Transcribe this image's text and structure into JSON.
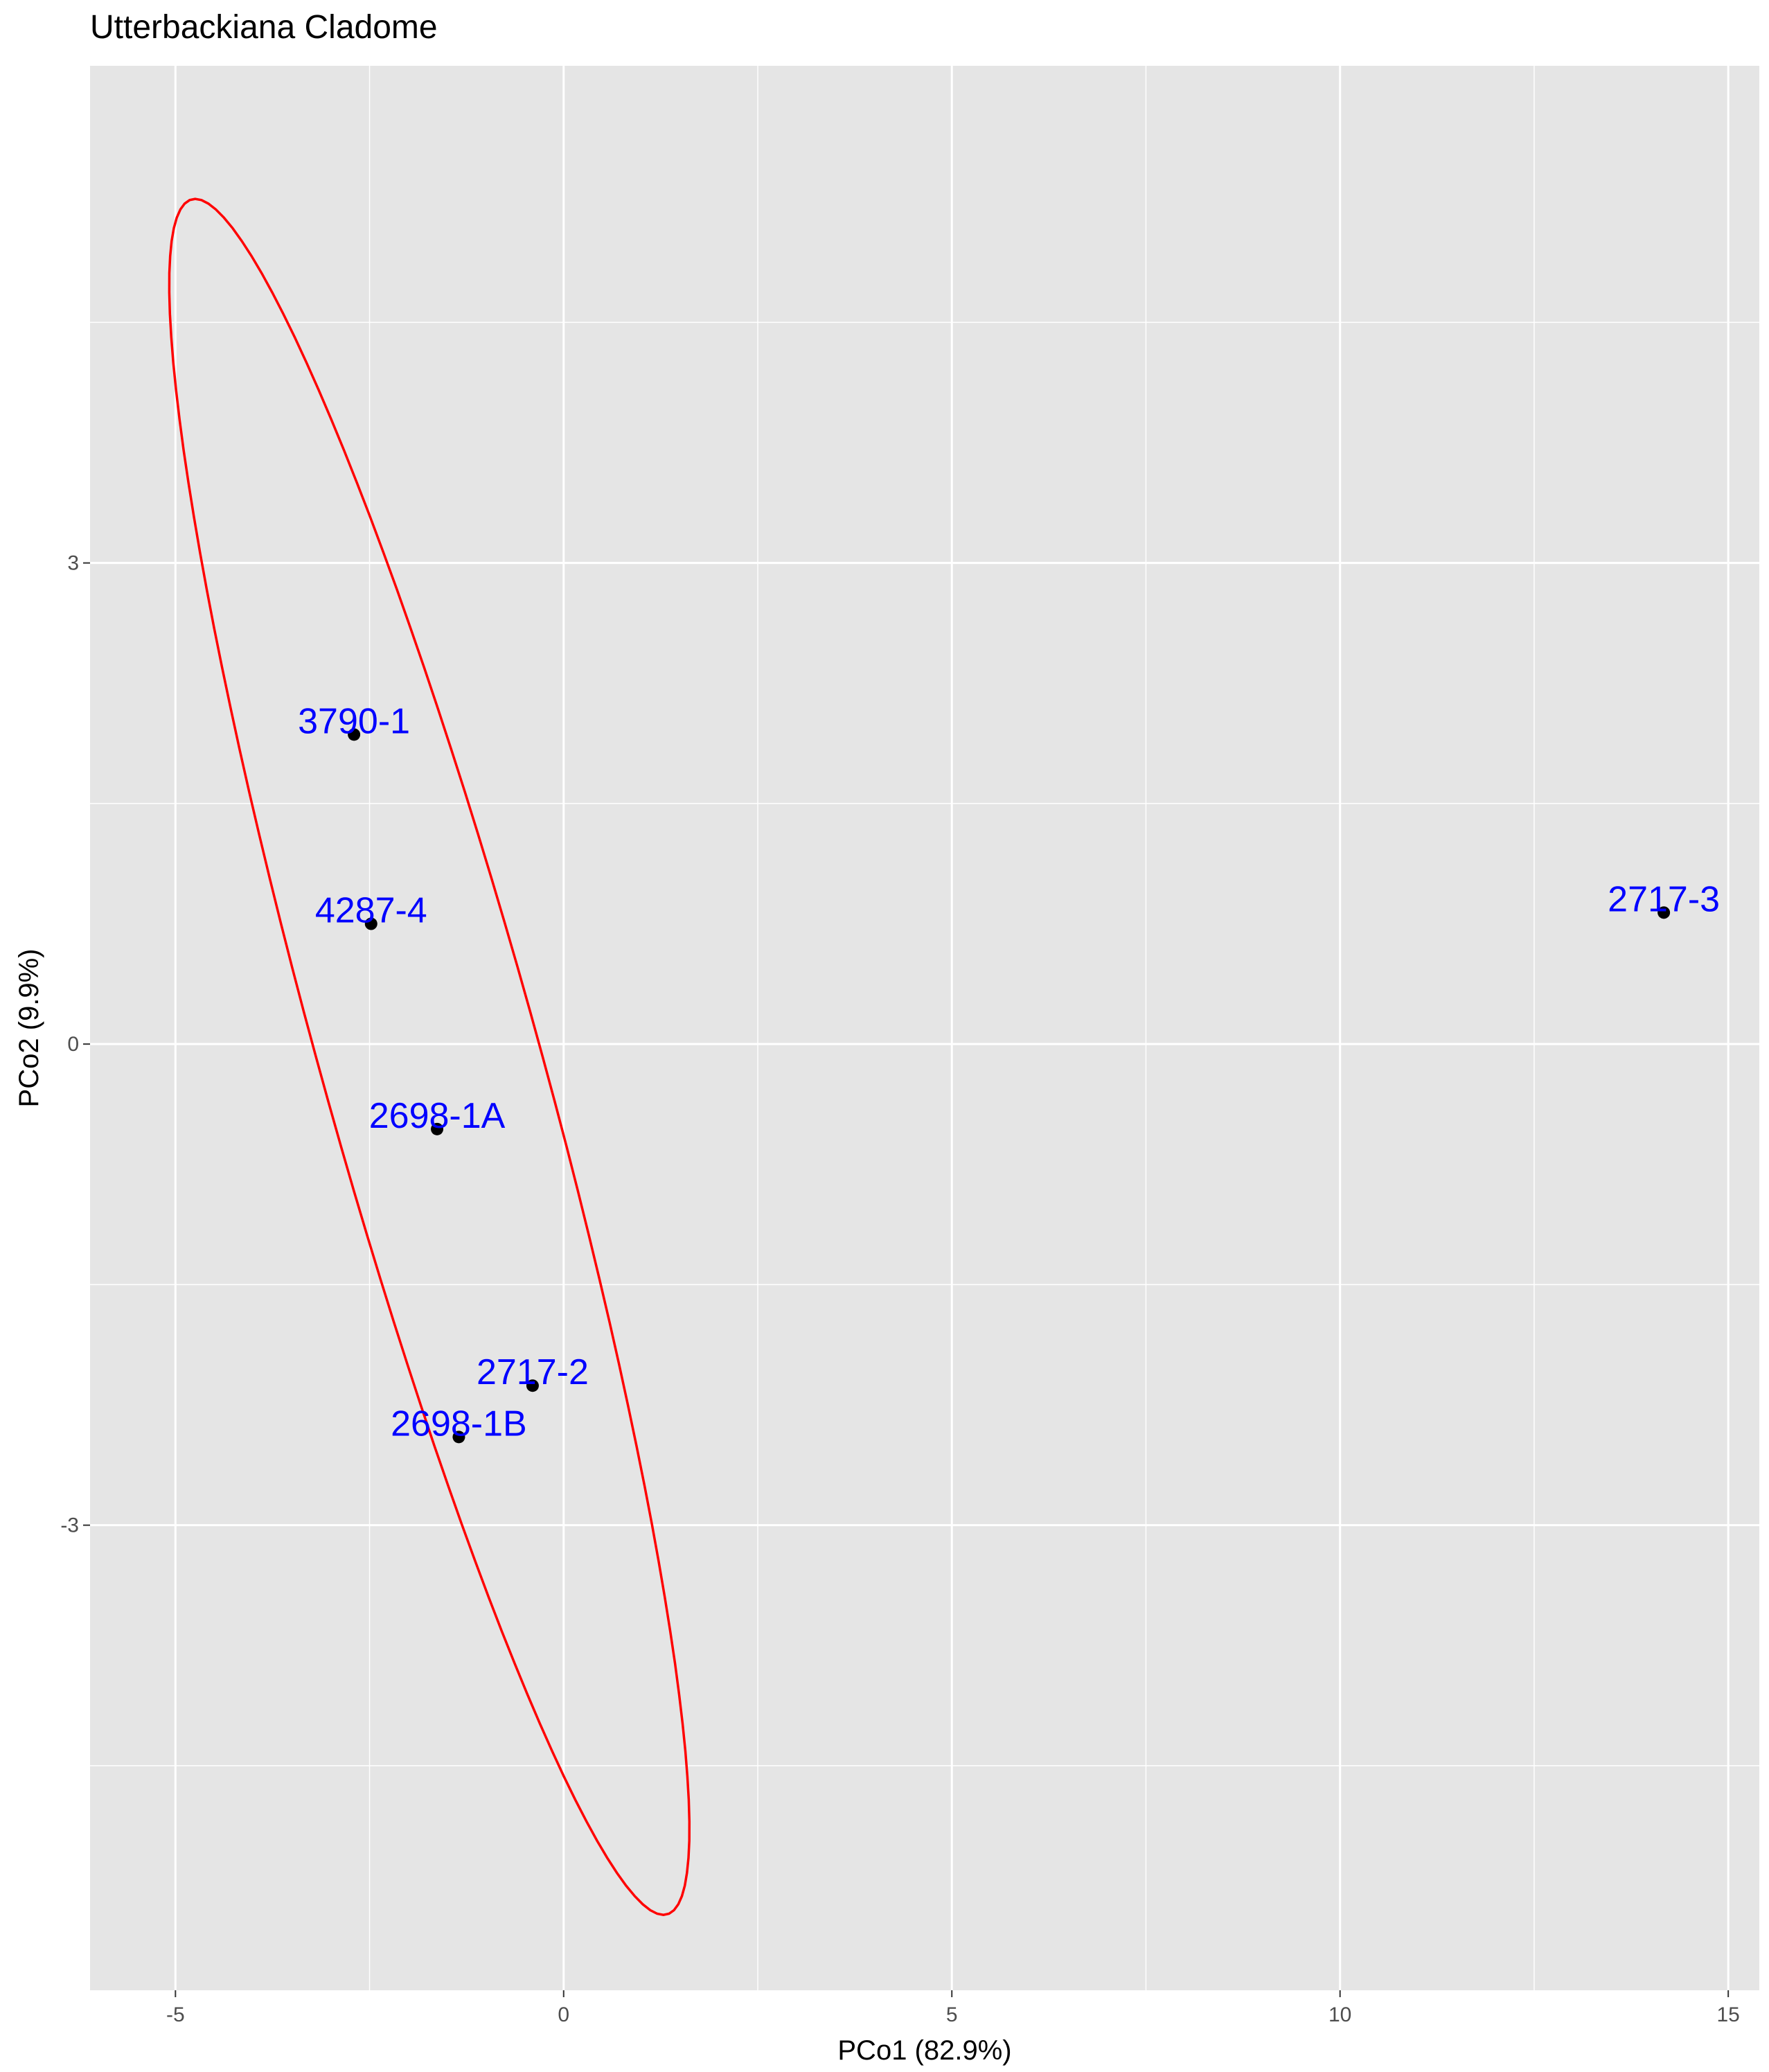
{
  "chart_data": {
    "type": "scatter",
    "title": "Utterbackiana Cladome",
    "xlabel": "PCo1 (82.9%)",
    "ylabel": "PCo2 (9.9%)",
    "xlim": [
      -6.1,
      15.4
    ],
    "ylim": [
      -5.9,
      6.1
    ],
    "x_ticks": [
      -5,
      0,
      5,
      10,
      15
    ],
    "x_tick_labels": [
      "-5",
      "0",
      "5",
      "10",
      "15"
    ],
    "y_ticks": [
      -3,
      0,
      3
    ],
    "y_tick_labels": [
      "-3",
      "0",
      "3"
    ],
    "grid": true,
    "panel_background": "#e5e5e5",
    "grid_color": "#ffffff",
    "point_color": "#000000",
    "label_color": "#0000ff",
    "ellipse_color": "#ff0000",
    "points": [
      {
        "label": "3790-1",
        "x": -2.7,
        "y": 1.93
      },
      {
        "label": "4287-4",
        "x": -2.48,
        "y": 0.75
      },
      {
        "label": "2698-1A",
        "x": -1.63,
        "y": -0.53
      },
      {
        "label": "2717-2",
        "x": -0.4,
        "y": -2.13
      },
      {
        "label": "2698-1B",
        "x": -1.35,
        "y": -2.45
      },
      {
        "label": "2717-3",
        "x": 14.17,
        "y": 0.82
      }
    ],
    "ellipse": {
      "center": [
        -1.73,
        -0.08
      ],
      "x_extents": [
        -5.15,
        1.55
      ],
      "y_extents": [
        -5.35,
        5.35
      ]
    }
  }
}
